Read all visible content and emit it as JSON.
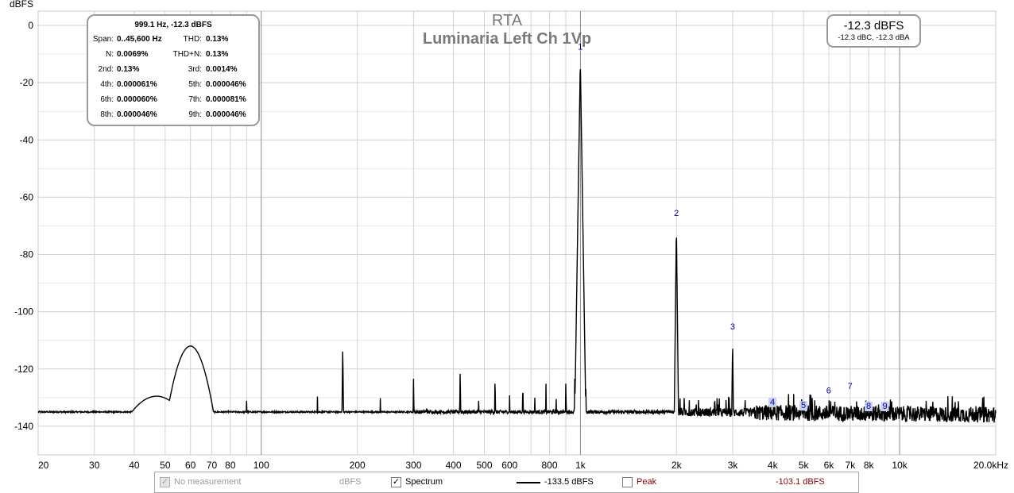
{
  "chart_data": {
    "type": "line",
    "title": "RTA",
    "subtitle": "Luminaria Left Ch 1Vp",
    "ylabel": "dBFS",
    "x_scale": "log",
    "xlim": [
      20,
      20000
    ],
    "ylim": [
      -150,
      5
    ],
    "x_ticks": [
      {
        "v": 20,
        "label": "20"
      },
      {
        "v": 30,
        "label": "30"
      },
      {
        "v": 40,
        "label": "40"
      },
      {
        "v": 50,
        "label": "50"
      },
      {
        "v": 60,
        "label": "60"
      },
      {
        "v": 70,
        "label": "70"
      },
      {
        "v": 80,
        "label": "80"
      },
      {
        "v": 100,
        "label": "100"
      },
      {
        "v": 200,
        "label": "200"
      },
      {
        "v": 300,
        "label": "300"
      },
      {
        "v": 400,
        "label": "400"
      },
      {
        "v": 500,
        "label": "500"
      },
      {
        "v": 600,
        "label": "600"
      },
      {
        "v": 800,
        "label": "800"
      },
      {
        "v": 1000,
        "label": "1k"
      },
      {
        "v": 2000,
        "label": "2k"
      },
      {
        "v": 3000,
        "label": "3k"
      },
      {
        "v": 4000,
        "label": "4k"
      },
      {
        "v": 5000,
        "label": "5k"
      },
      {
        "v": 6000,
        "label": "6k"
      },
      {
        "v": 7000,
        "label": "7k"
      },
      {
        "v": 8000,
        "label": "8k"
      },
      {
        "v": 10000,
        "label": "10k"
      },
      {
        "v": 20000,
        "label": "20.0kHz"
      }
    ],
    "x_minor_grid": [
      90,
      700,
      900,
      9000
    ],
    "x_major_lines": [
      100,
      1000,
      10000
    ],
    "y_ticks": [
      0,
      -20,
      -40,
      -60,
      -80,
      -100,
      -120,
      -140
    ],
    "y_minor_grid": [
      -10,
      -30,
      -50,
      -70,
      -90,
      -110,
      -130
    ],
    "grid": true,
    "noise_floor": {
      "low_f": 20,
      "db": -135
    },
    "broad_features": [
      {
        "f": 47,
        "db": -129.5,
        "width_oct": 0.22
      },
      {
        "f": 60,
        "db": -112,
        "width_oct": 0.1
      }
    ],
    "spurs": [
      {
        "f": 90,
        "db": -129
      },
      {
        "f": 150,
        "db": -129
      },
      {
        "f": 180,
        "db": -111.5
      },
      {
        "f": 236,
        "db": -129
      },
      {
        "f": 300,
        "db": -122.5
      },
      {
        "f": 330,
        "db": -129
      },
      {
        "f": 420,
        "db": -119.5
      },
      {
        "f": 480,
        "db": -129
      },
      {
        "f": 540,
        "db": -121.5
      },
      {
        "f": 600,
        "db": -128
      },
      {
        "f": 660,
        "db": -123.5
      },
      {
        "f": 720,
        "db": -127
      },
      {
        "f": 780,
        "db": -124.5
      },
      {
        "f": 840,
        "db": -128
      },
      {
        "f": 900,
        "db": -123
      },
      {
        "f": 960,
        "db": -121
      },
      {
        "f": 999.1,
        "db": -12.3
      },
      {
        "f": 1040,
        "db": -127
      },
      {
        "f": 1998,
        "db": -69.8
      },
      {
        "f": 2997,
        "db": -109.5
      }
    ],
    "series": [
      {
        "name": "Spectrum",
        "color": "#000000"
      }
    ],
    "harmonic_labels": [
      {
        "n": "1",
        "f": 999.1,
        "db": -8.5,
        "boxed": false
      },
      {
        "n": "2",
        "f": 1998,
        "db": -66.5,
        "boxed": false
      },
      {
        "n": "3",
        "f": 2997,
        "db": -106.2,
        "boxed": false
      },
      {
        "n": "4",
        "f": 3996,
        "db": -132.5,
        "boxed": true
      },
      {
        "n": "5",
        "f": 4996,
        "db": -133.7,
        "boxed": true
      },
      {
        "n": "6",
        "f": 5995,
        "db": -128.5,
        "boxed": false
      },
      {
        "n": "7",
        "f": 6994,
        "db": -127.0,
        "boxed": false
      },
      {
        "n": "8",
        "f": 7993,
        "db": -133.9,
        "boxed": true
      },
      {
        "n": "9",
        "f": 8992,
        "db": -133.9,
        "boxed": true
      }
    ]
  },
  "stats_box": {
    "title": "999.1 Hz, -12.3 dBFS",
    "rows": [
      [
        {
          "label": "Span:",
          "value": "0..45,600 Hz"
        },
        {
          "label": "THD:",
          "value": "0.13%"
        }
      ],
      [
        {
          "label": "N:",
          "value": "0.0069%"
        },
        {
          "label": "THD+N:",
          "value": "0.13%"
        }
      ],
      [
        {
          "label": "2nd:",
          "value": "0.13%"
        },
        {
          "label": "3rd:",
          "value": "0.0014%"
        }
      ],
      [
        {
          "label": "4th:",
          "value": "0.000061%"
        },
        {
          "label": "5th:",
          "value": "0.000046%"
        }
      ],
      [
        {
          "label": "6th:",
          "value": "0.000060%"
        },
        {
          "label": "7th:",
          "value": "0.000081%"
        }
      ],
      [
        {
          "label": "8th:",
          "value": "0.000046%"
        },
        {
          "label": "9th:",
          "value": "0.000046%"
        }
      ]
    ]
  },
  "level_box": {
    "main": "-12.3 dBFS",
    "sub": "-12.3 dBC, -12.3 dBA"
  },
  "legend": {
    "no_measurement": {
      "label": "No measurement",
      "unit": "dBFS",
      "checked": true,
      "disabled": true
    },
    "spectrum": {
      "label": "Spectrum",
      "value": "-133.5 dBFS",
      "checked": true,
      "line_color": "#000000"
    },
    "peak": {
      "label": "Peak",
      "value": "-103.1 dBFS",
      "checked": false,
      "text_color": "#8b0000"
    }
  }
}
